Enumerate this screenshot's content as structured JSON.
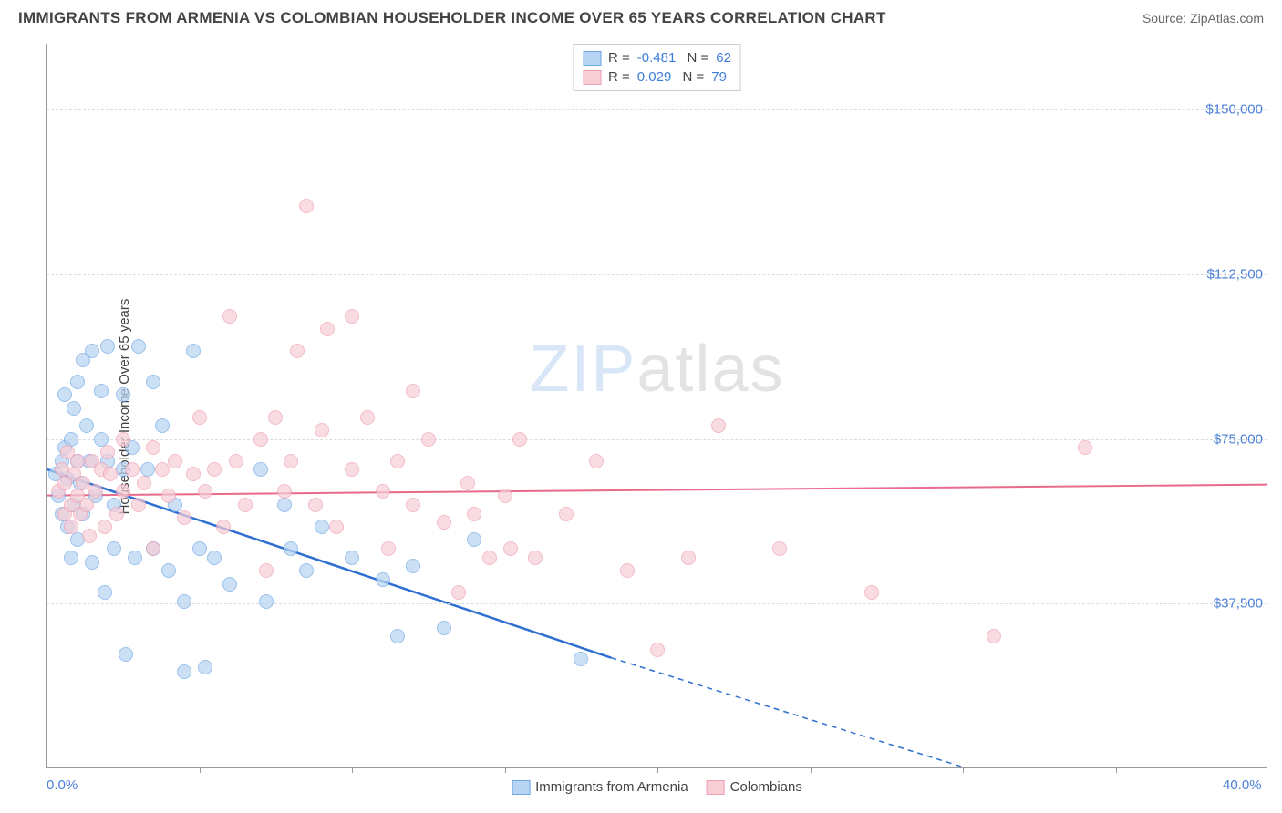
{
  "header": {
    "title": "IMMIGRANTS FROM ARMENIA VS COLOMBIAN HOUSEHOLDER INCOME OVER 65 YEARS CORRELATION CHART",
    "source_label": "Source:",
    "source_value": "ZipAtlas.com"
  },
  "watermark": {
    "part1": "ZIP",
    "part2": "atlas"
  },
  "chart": {
    "type": "scatter",
    "background_color": "#ffffff",
    "grid_color": "#dddddd",
    "axis_color": "#999999",
    "tick_label_color": "#4a7fd6",
    "y_axis_label": "Householder Income Over 65 years",
    "xlim": [
      0,
      40
    ],
    "ylim": [
      0,
      165000
    ],
    "y_ticks": [
      {
        "value": 37500,
        "label": "$37,500"
      },
      {
        "value": 75000,
        "label": "$75,000"
      },
      {
        "value": 112500,
        "label": "$112,500"
      },
      {
        "value": 150000,
        "label": "$150,000"
      }
    ],
    "x_ticks": [
      {
        "value": 0,
        "label": "0.0%"
      },
      {
        "value": 40,
        "label": "40.0%"
      }
    ],
    "x_minor_ticks": [
      5,
      10,
      15,
      20,
      25,
      30,
      35
    ],
    "marker_radius": 8,
    "series": [
      {
        "name": "Immigrants from Armenia",
        "fill": "#b7d4f2",
        "stroke": "#6ea8e6",
        "R": "-0.481",
        "N": "62",
        "trend": {
          "color": "#2e6fd1",
          "width": 2.5,
          "x1": 0,
          "y1": 68000,
          "x2": 18.5,
          "y2": 25000,
          "dash_x2": 31,
          "dash_y2": -2000
        },
        "points": [
          [
            0.3,
            67000
          ],
          [
            0.4,
            62000
          ],
          [
            0.5,
            70000
          ],
          [
            0.5,
            58000
          ],
          [
            0.6,
            73000
          ],
          [
            0.6,
            85000
          ],
          [
            0.7,
            66000
          ],
          [
            0.7,
            55000
          ],
          [
            0.8,
            75000
          ],
          [
            0.8,
            48000
          ],
          [
            0.9,
            82000
          ],
          [
            0.9,
            60000
          ],
          [
            1.0,
            70000
          ],
          [
            1.0,
            52000
          ],
          [
            1.0,
            88000
          ],
          [
            1.1,
            65000
          ],
          [
            1.2,
            93000
          ],
          [
            1.2,
            58000
          ],
          [
            1.3,
            78000
          ],
          [
            1.4,
            70000
          ],
          [
            1.5,
            95000
          ],
          [
            1.5,
            47000
          ],
          [
            1.6,
            62000
          ],
          [
            1.8,
            75000
          ],
          [
            1.8,
            86000
          ],
          [
            1.9,
            40000
          ],
          [
            2.0,
            70000
          ],
          [
            2.0,
            96000
          ],
          [
            2.2,
            60000
          ],
          [
            2.2,
            50000
          ],
          [
            2.5,
            85000
          ],
          [
            2.5,
            68000
          ],
          [
            2.6,
            26000
          ],
          [
            2.8,
            73000
          ],
          [
            2.9,
            48000
          ],
          [
            3.0,
            96000
          ],
          [
            3.3,
            68000
          ],
          [
            3.5,
            50000
          ],
          [
            3.5,
            88000
          ],
          [
            3.8,
            78000
          ],
          [
            4.0,
            45000
          ],
          [
            4.2,
            60000
          ],
          [
            4.5,
            38000
          ],
          [
            4.5,
            22000
          ],
          [
            4.8,
            95000
          ],
          [
            5.0,
            50000
          ],
          [
            5.2,
            23000
          ],
          [
            5.5,
            48000
          ],
          [
            6.0,
            42000
          ],
          [
            7.0,
            68000
          ],
          [
            7.2,
            38000
          ],
          [
            7.8,
            60000
          ],
          [
            8.0,
            50000
          ],
          [
            8.5,
            45000
          ],
          [
            9.0,
            55000
          ],
          [
            10.0,
            48000
          ],
          [
            11.0,
            43000
          ],
          [
            11.5,
            30000
          ],
          [
            12.0,
            46000
          ],
          [
            13.0,
            32000
          ],
          [
            14.0,
            52000
          ],
          [
            17.5,
            25000
          ]
        ]
      },
      {
        "name": "Colombians",
        "fill": "#f7cdd6",
        "stroke": "#ef9fb2",
        "R": "0.029",
        "N": "79",
        "trend": {
          "color": "#e86b8c",
          "width": 2,
          "x1": 0,
          "y1": 62000,
          "x2": 40,
          "y2": 64500
        },
        "points": [
          [
            0.4,
            63000
          ],
          [
            0.5,
            68000
          ],
          [
            0.6,
            58000
          ],
          [
            0.6,
            65000
          ],
          [
            0.7,
            72000
          ],
          [
            0.8,
            60000
          ],
          [
            0.8,
            55000
          ],
          [
            0.9,
            67000
          ],
          [
            1.0,
            70000
          ],
          [
            1.0,
            62000
          ],
          [
            1.1,
            58000
          ],
          [
            1.2,
            65000
          ],
          [
            1.3,
            60000
          ],
          [
            1.4,
            53000
          ],
          [
            1.5,
            70000
          ],
          [
            1.6,
            63000
          ],
          [
            1.8,
            68000
          ],
          [
            1.9,
            55000
          ],
          [
            2.0,
            72000
          ],
          [
            2.1,
            67000
          ],
          [
            2.3,
            58000
          ],
          [
            2.5,
            75000
          ],
          [
            2.5,
            63000
          ],
          [
            2.8,
            68000
          ],
          [
            3.0,
            60000
          ],
          [
            3.2,
            65000
          ],
          [
            3.5,
            73000
          ],
          [
            3.5,
            50000
          ],
          [
            3.8,
            68000
          ],
          [
            4.0,
            62000
          ],
          [
            4.2,
            70000
          ],
          [
            4.5,
            57000
          ],
          [
            4.8,
            67000
          ],
          [
            5.0,
            80000
          ],
          [
            5.2,
            63000
          ],
          [
            5.5,
            68000
          ],
          [
            5.8,
            55000
          ],
          [
            6.0,
            103000
          ],
          [
            6.2,
            70000
          ],
          [
            6.5,
            60000
          ],
          [
            7.0,
            75000
          ],
          [
            7.2,
            45000
          ],
          [
            7.5,
            80000
          ],
          [
            7.8,
            63000
          ],
          [
            8.0,
            70000
          ],
          [
            8.2,
            95000
          ],
          [
            8.5,
            128000
          ],
          [
            8.8,
            60000
          ],
          [
            9.0,
            77000
          ],
          [
            9.2,
            100000
          ],
          [
            9.5,
            55000
          ],
          [
            10.0,
            68000
          ],
          [
            10.0,
            103000
          ],
          [
            10.5,
            80000
          ],
          [
            11.0,
            63000
          ],
          [
            11.2,
            50000
          ],
          [
            11.5,
            70000
          ],
          [
            12.0,
            60000
          ],
          [
            12.0,
            86000
          ],
          [
            12.5,
            75000
          ],
          [
            13.0,
            56000
          ],
          [
            13.5,
            40000
          ],
          [
            13.8,
            65000
          ],
          [
            14.0,
            58000
          ],
          [
            14.5,
            48000
          ],
          [
            15.0,
            62000
          ],
          [
            15.2,
            50000
          ],
          [
            15.5,
            75000
          ],
          [
            16.0,
            48000
          ],
          [
            17.0,
            58000
          ],
          [
            18.0,
            70000
          ],
          [
            19.0,
            45000
          ],
          [
            20.0,
            27000
          ],
          [
            21.0,
            48000
          ],
          [
            22.0,
            78000
          ],
          [
            24.0,
            50000
          ],
          [
            27.0,
            40000
          ],
          [
            31.0,
            30000
          ],
          [
            34.0,
            73000
          ]
        ]
      }
    ],
    "legend_bottom": [
      {
        "label": "Immigrants from Armenia",
        "fill": "#b7d4f2",
        "stroke": "#6ea8e6"
      },
      {
        "label": "Colombians",
        "fill": "#f7cdd6",
        "stroke": "#ef9fb2"
      }
    ]
  }
}
